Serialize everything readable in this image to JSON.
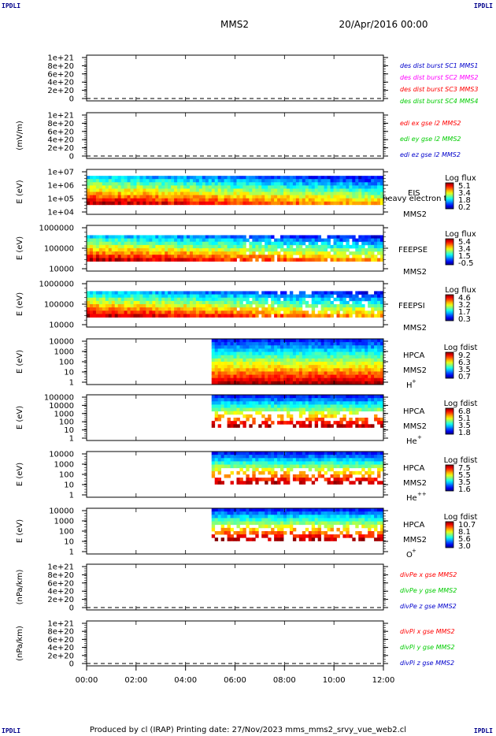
{
  "header": {
    "corner_tl": "IPDLI",
    "corner_tr": "IPDLI",
    "corner_bl": "IPDLI",
    "corner_br": "IPDLI",
    "title": "MMS2",
    "date": "20/Apr/2016 00:00"
  },
  "footer": "Produced by cl (IRAP)   Printing date: 27/Nov/2023   mms_mms2_srvy_vue_web2.cl",
  "time_axis": {
    "ticks": [
      "00:00",
      "02:00",
      "04:00",
      "06:00",
      "08:00",
      "10:00",
      "12:00"
    ],
    "range_hours": [
      0,
      12
    ]
  },
  "colors": {
    "red": "#ff0000",
    "magenta": "#ff00ff",
    "green": "#00cc00",
    "blue": "#0000cc"
  },
  "chart_data": [
    {
      "type": "line",
      "panel": "des",
      "ylabel": "",
      "yticks": [
        "1e+21",
        "8e+20",
        "6e+20",
        "4e+20",
        "2e+20",
        "0"
      ],
      "series": [
        {
          "name": "des dist burst SC1 MMS1",
          "color": "#0000cc",
          "values": [
            0,
            0
          ]
        },
        {
          "name": "des dist burst SC2 MMS2",
          "color": "#ff00ff",
          "values": [
            0,
            0
          ]
        },
        {
          "name": "des dist burst SC3 MMS3",
          "color": "#ff0000",
          "values": [
            0,
            0
          ]
        },
        {
          "name": "des dist burst SC4 MMS4",
          "color": "#00cc00",
          "values": [
            0,
            0
          ]
        }
      ]
    },
    {
      "type": "line",
      "panel": "edi",
      "ylabel": "(mV/m)",
      "yticks": [
        "1e+21",
        "8e+20",
        "6e+20",
        "4e+20",
        "2e+20",
        "0"
      ],
      "series": [
        {
          "name": "edi ex gse l2 MMS2",
          "color": "#ff0000",
          "values": [
            0,
            0
          ]
        },
        {
          "name": "edi ey gse l2 MMS2",
          "color": "#00cc00",
          "values": [
            0,
            0
          ]
        },
        {
          "name": "edi ez gse l2 MMS2",
          "color": "#0000cc",
          "values": [
            0,
            0
          ]
        }
      ]
    },
    {
      "type": "heatmap",
      "panel": "eis",
      "ylabel": "E (eV)",
      "yticks": [
        "1e+07",
        "1e+06",
        "1e+05",
        "1e+04"
      ],
      "right_labels": [
        "EIS",
        "heavy electron to",
        "MMS2"
      ],
      "cbar_title": "Log flux",
      "cbar_ticks": [
        "5.1",
        "3.4",
        "1.8",
        "0.2"
      ]
    },
    {
      "type": "heatmap",
      "panel": "feepse",
      "ylabel": "E (eV)",
      "yticks": [
        "1000000",
        "100000",
        "10000"
      ],
      "right_labels": [
        "FEEPSE",
        "MMS2"
      ],
      "cbar_title": "Log flux",
      "cbar_ticks": [
        "5.4",
        "3.4",
        "1.5",
        "-0.5"
      ]
    },
    {
      "type": "heatmap",
      "panel": "feepsi",
      "ylabel": "E (eV)",
      "yticks": [
        "1000000",
        "100000",
        "10000"
      ],
      "right_labels": [
        "FEEPSI",
        "MMS2"
      ],
      "cbar_title": "Log flux",
      "cbar_ticks": [
        "4.6",
        "3.2",
        "1.7",
        "0.3"
      ]
    },
    {
      "type": "heatmap",
      "panel": "hpca_h",
      "ylabel": "E (eV)",
      "yticks": [
        "10000",
        "1000",
        "100",
        "10",
        "1"
      ],
      "right_labels": [
        "HPCA",
        "MMS2",
        "H",
        "+"
      ],
      "cbar_title": "Log fdist",
      "cbar_ticks": [
        "9.2",
        "6.3",
        "3.5",
        "0.7"
      ]
    },
    {
      "type": "heatmap",
      "panel": "hpca_he",
      "ylabel": "E (eV)",
      "yticks": [
        "100000",
        "10000",
        "1000",
        "100",
        "10",
        "1"
      ],
      "right_labels": [
        "HPCA",
        "MMS2",
        "He",
        "+"
      ],
      "cbar_title": "Log fdist",
      "cbar_ticks": [
        "6.8",
        "5.1",
        "3.5",
        "1.8"
      ]
    },
    {
      "type": "heatmap",
      "panel": "hpca_hepp",
      "ylabel": "E (eV)",
      "yticks": [
        "10000",
        "1000",
        "100",
        "10",
        "1"
      ],
      "right_labels": [
        "HPCA",
        "MMS2",
        "He",
        "++"
      ],
      "cbar_title": "Log fdist",
      "cbar_ticks": [
        "7.5",
        "5.5",
        "3.5",
        "1.6"
      ]
    },
    {
      "type": "heatmap",
      "panel": "hpca_o",
      "ylabel": "E (eV)",
      "yticks": [
        "10000",
        "1000",
        "100",
        "10",
        "1"
      ],
      "right_labels": [
        "HPCA",
        "MMS2",
        "O",
        "+"
      ],
      "cbar_title": "Log fdist",
      "cbar_ticks": [
        "10.7",
        "8.1",
        "5.6",
        "3.0"
      ]
    },
    {
      "type": "line",
      "panel": "divpe",
      "ylabel": "(nPa/km)",
      "yticks": [
        "1e+21",
        "8e+20",
        "6e+20",
        "4e+20",
        "2e+20",
        "0"
      ],
      "series": [
        {
          "name": "divPe x gse MMS2",
          "color": "#ff0000",
          "values": [
            0,
            0
          ]
        },
        {
          "name": "divPe y gse MMS2",
          "color": "#00cc00",
          "values": [
            0,
            0
          ]
        },
        {
          "name": "divPe z gse MMS2",
          "color": "#0000cc",
          "values": [
            0,
            0
          ]
        }
      ]
    },
    {
      "type": "line",
      "panel": "divpi",
      "ylabel": "(nPa/km)",
      "yticks": [
        "1e+21",
        "8e+20",
        "6e+20",
        "4e+20",
        "2e+20",
        "0"
      ],
      "series": [
        {
          "name": "divPi x gse MMS2",
          "color": "#ff0000",
          "values": [
            0,
            0
          ]
        },
        {
          "name": "divPi y gse MMS2",
          "color": "#00cc00",
          "values": [
            0,
            0
          ]
        },
        {
          "name": "divPi z gse MMS2",
          "color": "#0000cc",
          "values": [
            0,
            0
          ]
        }
      ]
    }
  ]
}
